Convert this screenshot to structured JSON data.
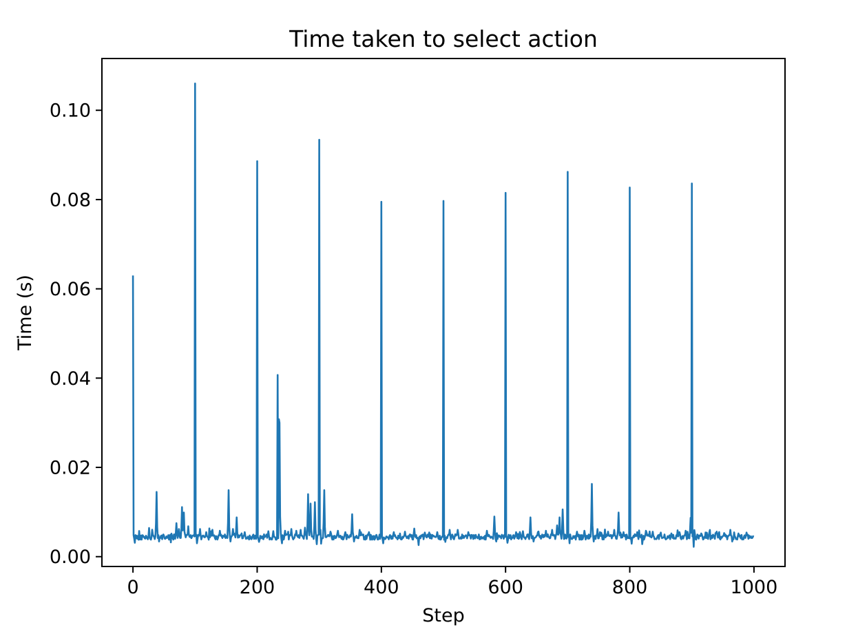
{
  "figure": {
    "background": "#ffffff",
    "axis_color": "#000000"
  },
  "chart_data": {
    "type": "line",
    "title": "Time taken to select action",
    "xlabel": "Step",
    "ylabel": "Time (s)",
    "x_ticks": [
      0,
      200,
      400,
      600,
      800,
      1000
    ],
    "y_ticks": [
      {
        "label": "0.00",
        "value": 0.0
      },
      {
        "label": "0.02",
        "value": 0.02
      },
      {
        "label": "0.04",
        "value": 0.04
      },
      {
        "label": "0.06",
        "value": 0.06
      },
      {
        "label": "0.08",
        "value": 0.08
      },
      {
        "label": "0.10",
        "value": 0.1
      }
    ],
    "xlim": [
      -50,
      1050
    ],
    "ylim": [
      -0.0022,
      0.1116
    ],
    "grid": false,
    "legend": null,
    "n_points": 1000,
    "line_color": "#1f77b4",
    "line_width": 2.6,
    "noise_seed": 42,
    "baseline": {
      "mean": 0.0044,
      "noise_amplitude": 0.0006,
      "bump_chance": 0.1,
      "bump_max": 0.0016
    },
    "spikes": [
      [
        0,
        0.063
      ],
      [
        38,
        0.0145
      ],
      [
        70,
        0.0075
      ],
      [
        74,
        0.0062
      ],
      [
        79,
        0.0111
      ],
      [
        82,
        0.0099
      ],
      [
        89,
        0.0068
      ],
      [
        100,
        0.106
      ],
      [
        108,
        0.0062
      ],
      [
        118,
        0.0055
      ],
      [
        126,
        0.0057
      ],
      [
        140,
        0.0058
      ],
      [
        154,
        0.0149
      ],
      [
        161,
        0.0062
      ],
      [
        167,
        0.0088
      ],
      [
        180,
        0.0055
      ],
      [
        200,
        0.0886
      ],
      [
        218,
        0.0057
      ],
      [
        233,
        0.0407
      ],
      [
        235,
        0.0308
      ],
      [
        236,
        0.03
      ],
      [
        237,
        0.009
      ],
      [
        245,
        0.0058
      ],
      [
        255,
        0.0062
      ],
      [
        263,
        0.0058
      ],
      [
        270,
        0.006
      ],
      [
        277,
        0.0065
      ],
      [
        282,
        0.014
      ],
      [
        286,
        0.0119
      ],
      [
        293,
        0.0122
      ],
      [
        300,
        0.0934
      ],
      [
        308,
        0.0149
      ],
      [
        318,
        0.0056
      ],
      [
        330,
        0.0058
      ],
      [
        342,
        0.0055
      ],
      [
        353,
        0.0095
      ],
      [
        365,
        0.006
      ],
      [
        380,
        0.0055
      ],
      [
        400,
        0.0795
      ],
      [
        420,
        0.0055
      ],
      [
        438,
        0.0056
      ],
      [
        453,
        0.0063
      ],
      [
        470,
        0.0054
      ],
      [
        490,
        0.0055
      ],
      [
        500,
        0.0797
      ],
      [
        510,
        0.006
      ],
      [
        523,
        0.006
      ],
      [
        540,
        0.0055
      ],
      [
        570,
        0.0058
      ],
      [
        582,
        0.009
      ],
      [
        600,
        0.0815
      ],
      [
        617,
        0.0055
      ],
      [
        628,
        0.0057
      ],
      [
        640,
        0.0088
      ],
      [
        652,
        0.0055
      ],
      [
        665,
        0.0058
      ],
      [
        675,
        0.006
      ],
      [
        683,
        0.007
      ],
      [
        687,
        0.0088
      ],
      [
        692,
        0.0106
      ],
      [
        700,
        0.0862
      ],
      [
        715,
        0.0056
      ],
      [
        727,
        0.0058
      ],
      [
        739,
        0.0163
      ],
      [
        752,
        0.0055
      ],
      [
        765,
        0.0056
      ],
      [
        775,
        0.006
      ],
      [
        782,
        0.0099
      ],
      [
        790,
        0.0055
      ],
      [
        800,
        0.0827
      ],
      [
        812,
        0.0055
      ],
      [
        826,
        0.0058
      ],
      [
        837,
        0.0056
      ],
      [
        850,
        0.0054
      ],
      [
        867,
        0.0052
      ],
      [
        880,
        0.0055
      ],
      [
        890,
        0.0058
      ],
      [
        898,
        0.0087
      ],
      [
        900,
        0.0836
      ],
      [
        915,
        0.0052
      ],
      [
        928,
        0.0054
      ],
      [
        940,
        0.0056
      ],
      [
        952,
        0.0053
      ],
      [
        962,
        0.006
      ],
      [
        975,
        0.0052
      ],
      [
        988,
        0.0054
      ]
    ],
    "dips": [
      [
        3,
        0.0031
      ],
      [
        42,
        0.0034
      ],
      [
        61,
        0.0032
      ],
      [
        103,
        0.003
      ],
      [
        157,
        0.0034
      ],
      [
        203,
        0.0033
      ],
      [
        240,
        0.003
      ],
      [
        296,
        0.0028
      ],
      [
        303,
        0.0029
      ],
      [
        356,
        0.0034
      ],
      [
        403,
        0.003
      ],
      [
        460,
        0.0026
      ],
      [
        503,
        0.0033
      ],
      [
        585,
        0.0034
      ],
      [
        603,
        0.0031
      ],
      [
        645,
        0.0034
      ],
      [
        703,
        0.003
      ],
      [
        742,
        0.0034
      ],
      [
        803,
        0.0029
      ],
      [
        820,
        0.0028
      ],
      [
        903,
        0.0022
      ],
      [
        965,
        0.0034
      ]
    ]
  }
}
